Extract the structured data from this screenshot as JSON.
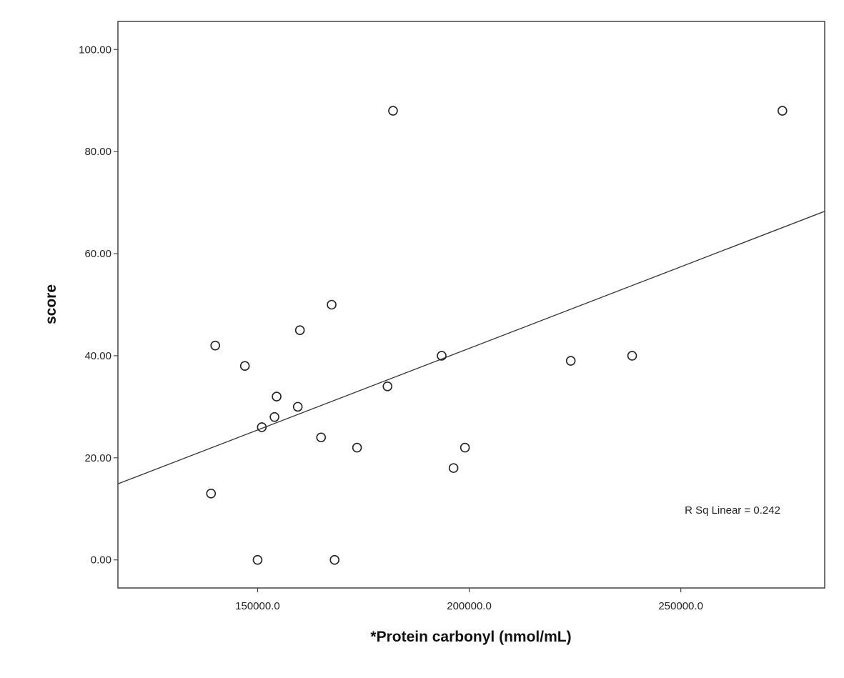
{
  "chart_data": {
    "type": "scatter",
    "title": "",
    "xlabel": "*Protein carbonyl (nmol/mL)",
    "ylabel": "score",
    "xlim": [
      117000,
      284000
    ],
    "ylim": [
      -5.5,
      105.5
    ],
    "x_ticks": [
      150000,
      200000,
      250000
    ],
    "x_tick_labels": [
      "150000.0",
      "200000.0",
      "250000.0"
    ],
    "y_ticks": [
      0,
      20,
      40,
      60,
      80,
      100
    ],
    "y_tick_labels": [
      "0.00",
      "20.00",
      "40.00",
      "60.00",
      "80.00",
      "100.00"
    ],
    "grid": false,
    "points": [
      {
        "x": 139000,
        "y": 13
      },
      {
        "x": 140000,
        "y": 42
      },
      {
        "x": 147000,
        "y": 38
      },
      {
        "x": 150000,
        "y": 0
      },
      {
        "x": 151000,
        "y": 26
      },
      {
        "x": 154000,
        "y": 28
      },
      {
        "x": 154500,
        "y": 32
      },
      {
        "x": 159500,
        "y": 30
      },
      {
        "x": 160000,
        "y": 45
      },
      {
        "x": 165000,
        "y": 24
      },
      {
        "x": 167500,
        "y": 50
      },
      {
        "x": 168200,
        "y": 0
      },
      {
        "x": 173500,
        "y": 22
      },
      {
        "x": 180700,
        "y": 34
      },
      {
        "x": 182000,
        "y": 88
      },
      {
        "x": 193500,
        "y": 40
      },
      {
        "x": 196300,
        "y": 18
      },
      {
        "x": 199000,
        "y": 22
      },
      {
        "x": 224000,
        "y": 39
      },
      {
        "x": 238500,
        "y": 40
      },
      {
        "x": 274000,
        "y": 88
      }
    ],
    "fit_line": {
      "x": [
        117000,
        284000
      ],
      "y": [
        14.9,
        68.3
      ]
    },
    "annotation": "R Sq Linear = 0.242"
  }
}
